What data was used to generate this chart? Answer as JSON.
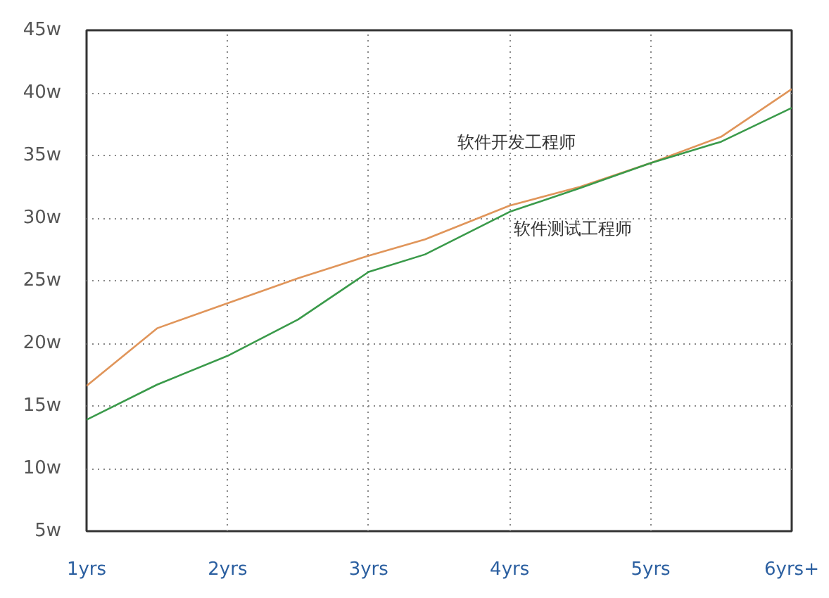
{
  "chart_data": {
    "type": "line",
    "xlim": [
      1,
      6
    ],
    "xticks": [
      {
        "value": 1,
        "label": "1yrs"
      },
      {
        "value": 2,
        "label": "2yrs"
      },
      {
        "value": 3,
        "label": "3yrs"
      },
      {
        "value": 4,
        "label": "4yrs"
      },
      {
        "value": 5,
        "label": "5yrs"
      },
      {
        "value": 6,
        "label": "6yrs+"
      }
    ],
    "ylim": [
      5,
      45
    ],
    "yticks": [
      {
        "value": 5,
        "label": "5w"
      },
      {
        "value": 10,
        "label": "10w"
      },
      {
        "value": 15,
        "label": "15w"
      },
      {
        "value": 20,
        "label": "20w"
      },
      {
        "value": 25,
        "label": "25w"
      },
      {
        "value": 30,
        "label": "30w"
      },
      {
        "value": 35,
        "label": "35w"
      },
      {
        "value": 40,
        "label": "40w"
      },
      {
        "value": 45,
        "label": "45w"
      }
    ],
    "grid": true,
    "line_style": "solid",
    "marker": "none",
    "legend": false,
    "series": [
      {
        "name": "软件开发工程师",
        "color": "#e0955a",
        "x": [
          1,
          1.5,
          2,
          2.5,
          3,
          3.4,
          4,
          4.5,
          5,
          5.5,
          6
        ],
        "values": [
          16.6,
          21.2,
          23.2,
          25.2,
          27.0,
          28.3,
          31.0,
          32.5,
          34.4,
          36.5,
          40.3
        ]
      },
      {
        "name": "软件测试工程师",
        "color": "#3a9a4a",
        "x": [
          1,
          1.5,
          2,
          2.5,
          3,
          3.4,
          4,
          4.5,
          5,
          5.5,
          6
        ],
        "values": [
          13.9,
          16.7,
          19.0,
          21.9,
          25.7,
          27.1,
          30.5,
          32.4,
          34.4,
          36.1,
          38.8
        ]
      }
    ]
  }
}
